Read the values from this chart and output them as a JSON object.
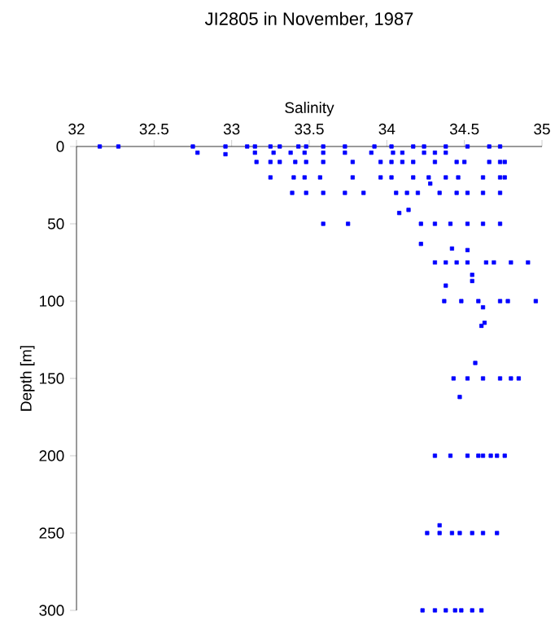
{
  "chart_data": {
    "type": "scatter",
    "title": "JI2805 in November, 1987",
    "xlabel": "Salinity",
    "ylabel": "Depth [m]",
    "xlim": [
      32,
      35
    ],
    "xticks": [
      32,
      32.5,
      33,
      33.5,
      34,
      34.5,
      35
    ],
    "ylim": [
      300,
      0
    ],
    "yticks": [
      0,
      50,
      100,
      150,
      200,
      250,
      300
    ],
    "marker": "square",
    "color": "#0000ff",
    "x": [
      32.15,
      32.27,
      32.75,
      32.96,
      33.1,
      33.15,
      33.25,
      33.31,
      33.43,
      33.48,
      33.59,
      33.73,
      33.92,
      34.03,
      34.17,
      34.24,
      34.38,
      34.52,
      34.66,
      34.73,
      32.78,
      32.96,
      33.15,
      33.27,
      33.38,
      33.47,
      33.59,
      33.73,
      33.9,
      34.04,
      34.1,
      34.24,
      34.31,
      34.38,
      33.16,
      33.25,
      33.31,
      33.41,
      33.48,
      33.59,
      33.78,
      33.96,
      34.03,
      34.1,
      34.17,
      34.31,
      34.45,
      34.5,
      34.66,
      34.73,
      34.76,
      33.25,
      33.4,
      33.47,
      33.57,
      33.78,
      33.96,
      34.03,
      34.17,
      34.27,
      34.38,
      34.46,
      34.62,
      34.73,
      34.76,
      34.28,
      33.39,
      33.48,
      33.59,
      33.73,
      33.85,
      34.06,
      34.13,
      34.2,
      34.34,
      34.45,
      34.52,
      34.62,
      34.73,
      34.08,
      34.14,
      33.59,
      33.75,
      34.22,
      34.31,
      34.41,
      34.52,
      34.62,
      34.73,
      34.22,
      34.42,
      34.52,
      34.31,
      34.38,
      34.45,
      34.52,
      34.64,
      34.69,
      34.8,
      34.91,
      34.55,
      34.55,
      34.38,
      34.37,
      34.48,
      34.59,
      34.73,
      34.78,
      34.96,
      34.62,
      34.63,
      34.61,
      34.57,
      34.43,
      34.52,
      34.62,
      34.73,
      34.8,
      34.85,
      34.47,
      34.31,
      34.41,
      34.52,
      34.59,
      34.62,
      34.67,
      34.71,
      34.76,
      34.34,
      34.26,
      34.34,
      34.42,
      34.47,
      34.55,
      34.62,
      34.71,
      34.23,
      34.31,
      34.38,
      34.44,
      34.48,
      34.55,
      34.61
    ],
    "values": [
      0,
      0,
      0,
      0,
      0,
      0,
      0,
      0,
      0,
      0,
      0,
      0,
      0,
      0,
      0,
      0,
      0,
      0,
      0,
      0,
      4,
      5,
      4,
      4,
      4,
      4,
      4,
      4,
      4,
      4,
      4,
      4,
      4,
      4,
      10,
      10,
      10,
      10,
      10,
      10,
      10,
      10,
      10,
      10,
      10,
      10,
      10,
      10,
      10,
      10,
      10,
      20,
      20,
      20,
      20,
      20,
      20,
      20,
      20,
      20,
      20,
      20,
      20,
      20,
      20,
      24,
      30,
      30,
      30,
      30,
      30,
      30,
      30,
      30,
      30,
      30,
      30,
      30,
      30,
      43,
      41,
      50,
      50,
      50,
      50,
      50,
      50,
      50,
      50,
      63,
      66,
      67,
      75,
      75,
      75,
      75,
      75,
      75,
      75,
      75,
      83,
      87,
      90,
      100,
      100,
      100,
      100,
      100,
      100,
      104,
      114,
      116,
      140,
      150,
      150,
      150,
      150,
      150,
      150,
      162,
      200,
      200,
      200,
      200,
      200,
      200,
      200,
      200,
      245,
      250,
      250,
      250,
      250,
      250,
      250,
      250,
      300,
      300,
      300,
      300,
      300,
      300,
      300
    ]
  }
}
